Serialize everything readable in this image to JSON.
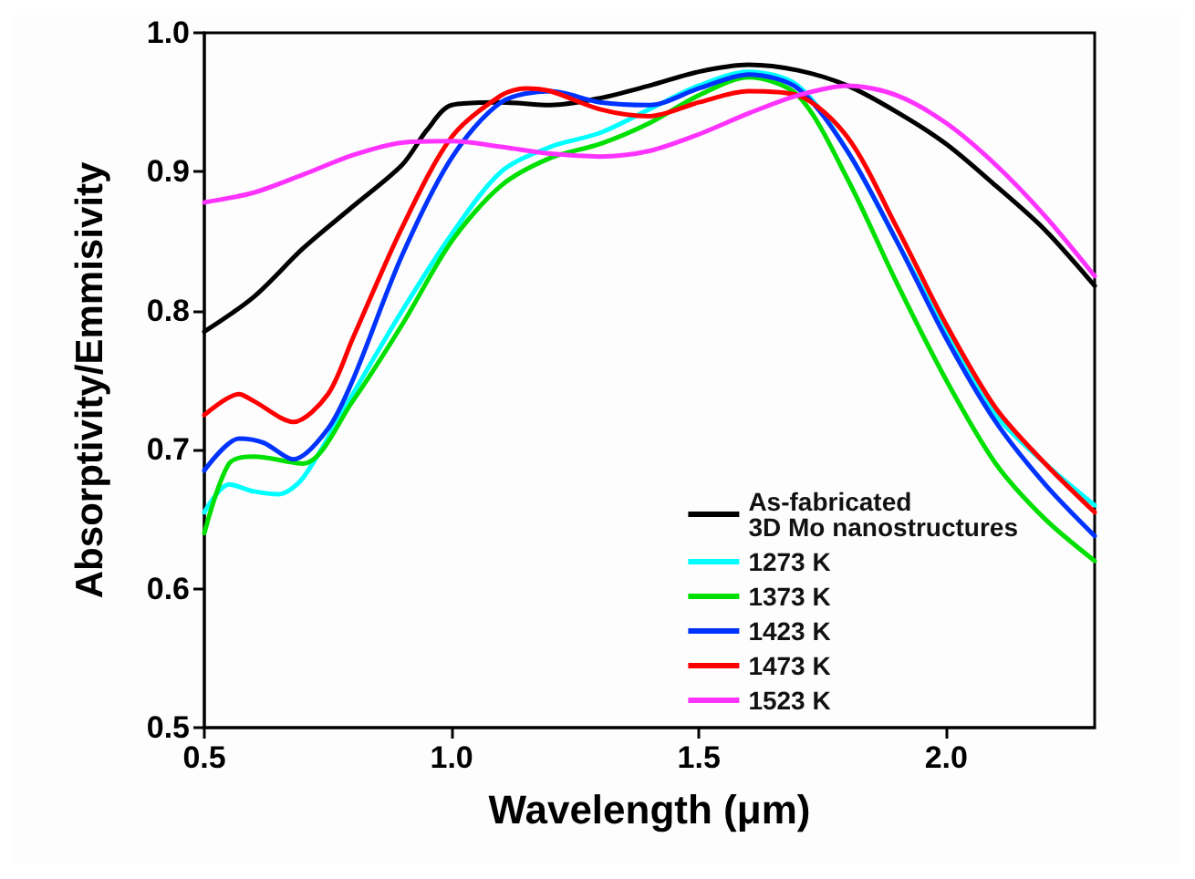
{
  "chart_data": {
    "type": "line",
    "xlabel": "Wavelength (μm)",
    "ylabel": "Absorptivity/Emmisivity",
    "xlim": [
      0.5,
      2.3
    ],
    "xticks": [
      0.5,
      {
        "value": 1,
        "label": "1.0"
      },
      1.5,
      {
        "value": 2,
        "label": "2.0"
      }
    ],
    "ylim": [
      0.5,
      1.0
    ],
    "yticks": [
      0.5,
      0.6,
      0.7,
      0.8,
      0.9,
      {
        "value": 1,
        "label": "1.0"
      }
    ],
    "grid": false,
    "legend": "bottom right",
    "marker": "none",
    "line_style": "solid",
    "series": [
      {
        "name": "As-fabricated\n3D Mo nanostructures",
        "color": "#000000",
        "x": [
          0.5,
          0.6,
          0.7,
          0.8,
          0.9,
          0.95,
          1.0,
          1.1,
          1.2,
          1.3,
          1.4,
          1.5,
          1.6,
          1.7,
          1.8,
          1.9,
          2.0,
          2.1,
          2.2,
          2.3
        ],
        "values": [
          0.785,
          0.81,
          0.845,
          0.875,
          0.905,
          0.93,
          0.948,
          0.95,
          0.948,
          0.953,
          0.962,
          0.972,
          0.977,
          0.973,
          0.962,
          0.943,
          0.92,
          0.89,
          0.858,
          0.818
        ]
      },
      {
        "name": "1273 K",
        "color": "#00ffff",
        "x": [
          0.5,
          0.55,
          0.6,
          0.65,
          0.7,
          0.8,
          0.9,
          1.0,
          1.1,
          1.2,
          1.3,
          1.4,
          1.5,
          1.6,
          1.7,
          1.8,
          1.9,
          2.0,
          2.1,
          2.2,
          2.3
        ],
        "values": [
          0.655,
          0.675,
          0.67,
          0.668,
          0.68,
          0.74,
          0.8,
          0.855,
          0.9,
          0.918,
          0.928,
          0.945,
          0.962,
          0.972,
          0.962,
          0.915,
          0.85,
          0.785,
          0.725,
          0.69,
          0.66
        ]
      },
      {
        "name": "1373 K",
        "color": "#00e000",
        "x": [
          0.5,
          0.55,
          0.6,
          0.7,
          0.8,
          0.9,
          1.0,
          1.1,
          1.2,
          1.3,
          1.4,
          1.5,
          1.6,
          1.7,
          1.8,
          1.9,
          2.0,
          2.1,
          2.2,
          2.3
        ],
        "values": [
          0.64,
          0.69,
          0.695,
          0.69,
          0.735,
          0.79,
          0.85,
          0.89,
          0.91,
          0.92,
          0.935,
          0.955,
          0.968,
          0.955,
          0.895,
          0.82,
          0.75,
          0.69,
          0.65,
          0.62
        ]
      },
      {
        "name": "1423 K",
        "color": "#0033ff",
        "x": [
          0.5,
          0.57,
          0.62,
          0.68,
          0.75,
          0.8,
          0.9,
          1.0,
          1.1,
          1.2,
          1.3,
          1.4,
          1.5,
          1.6,
          1.7,
          1.8,
          1.9,
          2.0,
          2.1,
          2.2,
          2.3
        ],
        "values": [
          0.685,
          0.708,
          0.705,
          0.693,
          0.715,
          0.75,
          0.84,
          0.91,
          0.95,
          0.958,
          0.95,
          0.948,
          0.96,
          0.97,
          0.96,
          0.915,
          0.85,
          0.78,
          0.72,
          0.675,
          0.638
        ]
      },
      {
        "name": "1473 K",
        "color": "#ff0000",
        "x": [
          0.5,
          0.57,
          0.6,
          0.68,
          0.75,
          0.8,
          0.9,
          1.0,
          1.1,
          1.15,
          1.2,
          1.3,
          1.4,
          1.5,
          1.6,
          1.7,
          1.8,
          1.9,
          2.0,
          2.1,
          2.2,
          2.3
        ],
        "values": [
          0.725,
          0.74,
          0.735,
          0.72,
          0.74,
          0.78,
          0.86,
          0.925,
          0.955,
          0.96,
          0.958,
          0.945,
          0.94,
          0.95,
          0.958,
          0.955,
          0.925,
          0.86,
          0.79,
          0.73,
          0.69,
          0.655
        ]
      },
      {
        "name": "1523 K",
        "color": "#ff33ff",
        "x": [
          0.5,
          0.6,
          0.7,
          0.8,
          0.9,
          1.0,
          1.1,
          1.2,
          1.3,
          1.4,
          1.5,
          1.6,
          1.7,
          1.8,
          1.9,
          2.0,
          2.1,
          2.2,
          2.3
        ],
        "values": [
          0.878,
          0.885,
          0.898,
          0.912,
          0.921,
          0.922,
          0.918,
          0.913,
          0.911,
          0.915,
          0.927,
          0.942,
          0.955,
          0.962,
          0.955,
          0.935,
          0.905,
          0.868,
          0.825
        ]
      }
    ]
  }
}
